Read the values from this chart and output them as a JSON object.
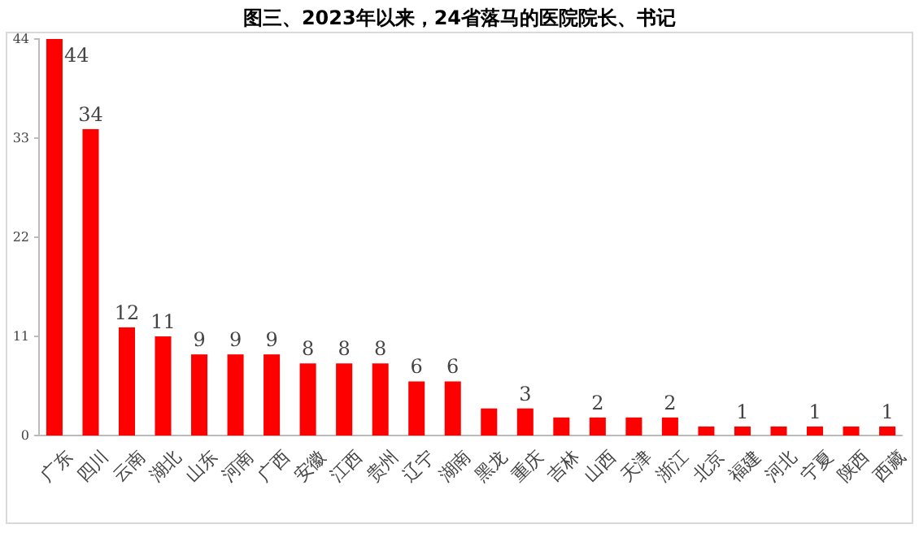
{
  "chart_data": {
    "type": "bar",
    "title": "图三、2023年以来，24省落马的医院院长、书记",
    "categories": [
      "广东",
      "四川",
      "云南",
      "湖北",
      "山东",
      "河南",
      "广西",
      "安徽",
      "江西",
      "贵州",
      "辽宁",
      "湖南",
      "黑龙",
      "重庆",
      "吉林",
      "山西",
      "天津",
      "浙江",
      "北京",
      "福建",
      "河北",
      "宁夏",
      "陕西",
      "西藏"
    ],
    "values": [
      44,
      34,
      12,
      11,
      9,
      9,
      9,
      8,
      8,
      8,
      6,
      6,
      3,
      3,
      2,
      2,
      2,
      2,
      1,
      1,
      1,
      1,
      1,
      1
    ],
    "value_labels": [
      "44",
      "34",
      "12",
      "11",
      "9",
      "9",
      "9",
      "8",
      "8",
      "8",
      "6",
      "6",
      null,
      "3",
      null,
      "2",
      null,
      "2",
      null,
      "1",
      null,
      "1",
      null,
      "1"
    ],
    "color": "#ff0000",
    "ylim": [
      0,
      44
    ],
    "yticks": [
      0,
      11,
      22,
      33,
      44
    ],
    "grid": false
  }
}
